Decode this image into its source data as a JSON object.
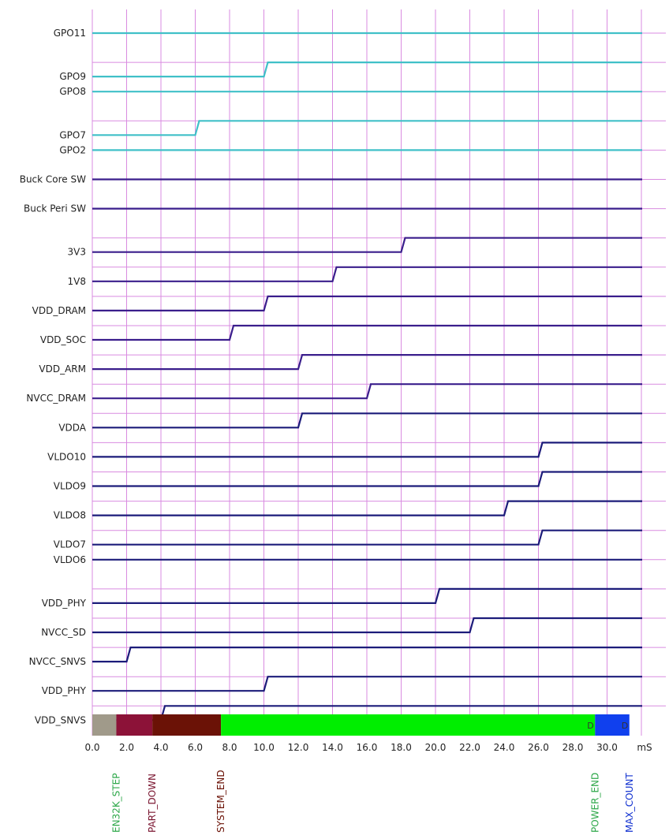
{
  "chart_data": {
    "type": "line",
    "subtype": "digital-timing",
    "x_unit": "mS",
    "xlim": [
      0,
      32
    ],
    "x_ticks": [
      "0.0",
      "2.0",
      "4.0",
      "6.0",
      "8.0",
      "10.0",
      "12.0",
      "14.0",
      "16.0",
      "18.0",
      "20.0",
      "22.0",
      "24.0",
      "26.0",
      "28.0",
      "30.0"
    ],
    "grid": true,
    "grid_color": "#d98be0",
    "colors": {
      "gpo": "#40c0c8",
      "buck": "#3a1e8c",
      "ldo": "#1c1c7a"
    },
    "series": [
      {
        "name": "GPO11",
        "rise": null,
        "group": "gpo",
        "initial": "high"
      },
      {
        "name": "GPO9",
        "rise": 10,
        "group": "gpo",
        "initial": "low"
      },
      {
        "name": "GPO8",
        "rise": null,
        "group": "gpo",
        "initial": "high"
      },
      {
        "name": "GPO7",
        "rise": 6,
        "group": "gpo",
        "initial": "low"
      },
      {
        "name": "GPO2",
        "rise": null,
        "group": "gpo",
        "initial": "high"
      },
      {
        "name": "Buck Core SW",
        "rise": null,
        "group": "buck",
        "initial": "high"
      },
      {
        "name": "Buck Peri SW",
        "rise": null,
        "group": "buck",
        "initial": "high"
      },
      {
        "name": "3V3",
        "rise": 18,
        "group": "buck",
        "initial": "low"
      },
      {
        "name": "1V8",
        "rise": 14,
        "group": "buck",
        "initial": "low"
      },
      {
        "name": "VDD_DRAM",
        "rise": 10,
        "group": "buck",
        "initial": "low"
      },
      {
        "name": "VDD_SOC",
        "rise": 8,
        "group": "buck",
        "initial": "low"
      },
      {
        "name": "VDD_ARM",
        "rise": 12,
        "group": "buck",
        "initial": "low"
      },
      {
        "name": "NVCC_DRAM",
        "rise": 16,
        "group": "buck",
        "initial": "low"
      },
      {
        "name": "VDDA",
        "rise": 12,
        "group": "ldo",
        "initial": "low"
      },
      {
        "name": "VLDO10",
        "rise": 26,
        "group": "ldo",
        "initial": "low"
      },
      {
        "name": "VLDO9",
        "rise": 26,
        "group": "ldo",
        "initial": "low"
      },
      {
        "name": "VLDO8",
        "rise": 24,
        "group": "ldo",
        "initial": "low"
      },
      {
        "name": "VLDO7",
        "rise": 26,
        "group": "ldo",
        "initial": "low"
      },
      {
        "name": "VLDO6",
        "rise": null,
        "group": "ldo",
        "initial": "high"
      },
      {
        "name": "VDD_PHY",
        "rise": 20,
        "group": "ldo",
        "initial": "low"
      },
      {
        "name": "NVCC_SD",
        "rise": 22,
        "group": "ldo",
        "initial": "low"
      },
      {
        "name": "NVCC_SNVS",
        "rise": 2,
        "group": "ldo",
        "initial": "low"
      },
      {
        "name": "VDD_PHY",
        "rise": 10,
        "group": "ldo",
        "initial": "low"
      },
      {
        "name": "VDD_SNVS",
        "rise": 4,
        "group": "ldo",
        "initial": "low"
      }
    ],
    "phases": [
      {
        "start": 0,
        "end": 1.4,
        "color": "#a09a8a",
        "tag": ""
      },
      {
        "start": 1.4,
        "end": 3.5,
        "color": "#8c1238",
        "tag": ""
      },
      {
        "start": 3.5,
        "end": 7.5,
        "color": "#6b1206",
        "tag": ""
      },
      {
        "start": 7.5,
        "end": 29.3,
        "color": "#00ee00",
        "tag": "D"
      },
      {
        "start": 29.3,
        "end": 31.3,
        "color": "#1040ee",
        "tag": "D"
      }
    ],
    "markers": [
      {
        "label": "EN32K_STEP",
        "x": 1.4,
        "color": "#2ea84a"
      },
      {
        "label": "PART_DOWN",
        "x": 3.5,
        "color": "#7a1530"
      },
      {
        "label": "SYSTEM_END",
        "x": 7.5,
        "color": "#6b1206"
      },
      {
        "label": "POWER_END",
        "x": 29.3,
        "color": "#2ea84a"
      },
      {
        "label": "MAX_COUNT",
        "x": 31.3,
        "color": "#1030d0"
      }
    ]
  }
}
